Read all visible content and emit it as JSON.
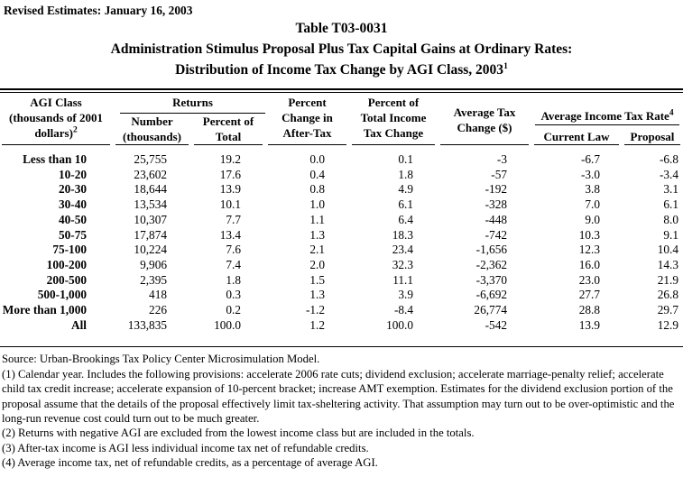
{
  "colors": {
    "text": "#000000",
    "background": "#ffffff"
  },
  "meta": {
    "revised_label": "Revised Estimates: January 16, 2003"
  },
  "title": {
    "line1": "Table T03-0031",
    "line2": "Administration Stimulus Proposal Plus Tax Capital Gains at Ordinary Rates:",
    "line3": "Distribution of Income Tax Change by AGI Class, 2003",
    "line3_sup": "1"
  },
  "table": {
    "header": {
      "agi_class": {
        "lines": [
          "AGI Class",
          "(thousands of 2001",
          "dollars)"
        ],
        "sup": "2"
      },
      "returns": {
        "label": "Returns",
        "number_lines": [
          "Number",
          "(thousands)"
        ],
        "percent_lines": [
          "Percent of",
          "Total"
        ]
      },
      "percent_change_after_tax": {
        "lines": [
          "Percent",
          "Change in",
          "After-Tax"
        ]
      },
      "percent_of_total_income_tax_change": {
        "lines": [
          "Percent of",
          "Total Income",
          "Tax Change"
        ]
      },
      "average_tax_change": {
        "lines": [
          "Average Tax",
          "Change ($)"
        ]
      },
      "average_income_tax_rate": {
        "label": "Average Income Tax Rate",
        "sup": "4",
        "current_law": "Current Law",
        "proposal": "Proposal"
      }
    },
    "column_order": [
      "agi_class",
      "returns_number",
      "returns_percent_of_total",
      "percent_change_after_tax",
      "percent_of_total_income_tax_change",
      "average_tax_change",
      "rate_current_law",
      "rate_proposal"
    ],
    "rows": [
      {
        "agi_class": "Less than 10",
        "returns_number": "25,755",
        "returns_percent_of_total": "19.2",
        "percent_change_after_tax": "0.0",
        "percent_of_total_income_tax_change": "0.1",
        "average_tax_change": "-3",
        "rate_current_law": "-6.7",
        "rate_proposal": "-6.8"
      },
      {
        "agi_class": "10-20",
        "returns_number": "23,602",
        "returns_percent_of_total": "17.6",
        "percent_change_after_tax": "0.4",
        "percent_of_total_income_tax_change": "1.8",
        "average_tax_change": "-57",
        "rate_current_law": "-3.0",
        "rate_proposal": "-3.4"
      },
      {
        "agi_class": "20-30",
        "returns_number": "18,644",
        "returns_percent_of_total": "13.9",
        "percent_change_after_tax": "0.8",
        "percent_of_total_income_tax_change": "4.9",
        "average_tax_change": "-192",
        "rate_current_law": "3.8",
        "rate_proposal": "3.1"
      },
      {
        "agi_class": "30-40",
        "returns_number": "13,534",
        "returns_percent_of_total": "10.1",
        "percent_change_after_tax": "1.0",
        "percent_of_total_income_tax_change": "6.1",
        "average_tax_change": "-328",
        "rate_current_law": "7.0",
        "rate_proposal": "6.1"
      },
      {
        "agi_class": "40-50",
        "returns_number": "10,307",
        "returns_percent_of_total": "7.7",
        "percent_change_after_tax": "1.1",
        "percent_of_total_income_tax_change": "6.4",
        "average_tax_change": "-448",
        "rate_current_law": "9.0",
        "rate_proposal": "8.0"
      },
      {
        "agi_class": "50-75",
        "returns_number": "17,874",
        "returns_percent_of_total": "13.4",
        "percent_change_after_tax": "1.3",
        "percent_of_total_income_tax_change": "18.3",
        "average_tax_change": "-742",
        "rate_current_law": "10.3",
        "rate_proposal": "9.1"
      },
      {
        "agi_class": "75-100",
        "returns_number": "10,224",
        "returns_percent_of_total": "7.6",
        "percent_change_after_tax": "2.1",
        "percent_of_total_income_tax_change": "23.4",
        "average_tax_change": "-1,656",
        "rate_current_law": "12.3",
        "rate_proposal": "10.4"
      },
      {
        "agi_class": "100-200",
        "returns_number": "9,906",
        "returns_percent_of_total": "7.4",
        "percent_change_after_tax": "2.0",
        "percent_of_total_income_tax_change": "32.3",
        "average_tax_change": "-2,362",
        "rate_current_law": "16.0",
        "rate_proposal": "14.3"
      },
      {
        "agi_class": "200-500",
        "returns_number": "2,395",
        "returns_percent_of_total": "1.8",
        "percent_change_after_tax": "1.5",
        "percent_of_total_income_tax_change": "11.1",
        "average_tax_change": "-3,370",
        "rate_current_law": "23.0",
        "rate_proposal": "21.9"
      },
      {
        "agi_class": "500-1,000",
        "returns_number": "418",
        "returns_percent_of_total": "0.3",
        "percent_change_after_tax": "1.3",
        "percent_of_total_income_tax_change": "3.9",
        "average_tax_change": "-6,692",
        "rate_current_law": "27.7",
        "rate_proposal": "26.8"
      },
      {
        "agi_class": "More than 1,000",
        "returns_number": "226",
        "returns_percent_of_total": "0.2",
        "percent_change_after_tax": "-1.2",
        "percent_of_total_income_tax_change": "-8.4",
        "average_tax_change": "26,774",
        "rate_current_law": "28.8",
        "rate_proposal": "29.7"
      },
      {
        "agi_class": "All",
        "returns_number": "133,835",
        "returns_percent_of_total": "100.0",
        "percent_change_after_tax": "1.2",
        "percent_of_total_income_tax_change": "100.0",
        "average_tax_change": "-542",
        "rate_current_law": "13.9",
        "rate_proposal": "12.9"
      }
    ]
  },
  "footnotes": [
    "Source: Urban-Brookings Tax Policy Center Microsimulation Model.",
    "(1) Calendar year. Includes the following provisions: accelerate 2006 rate cuts; dividend exclusion; accelerate marriage-penalty relief; accelerate child tax credit increase; accelerate expansion of 10-percent bracket; increase AMT exemption. Estimates for the dividend exclusion portion of the proposal assume that the details of the proposal effectively limit tax-sheltering activity.  That assumption may turn out to be over-optimistic and the long-run revenue cost could turn out to be much greater.",
    "(2) Returns with negative AGI are excluded from the lowest income class but are included in the totals.",
    "(3) After-tax income is AGI less individual income tax net of refundable credits.",
    "(4) Average income tax, net of refundable credits, as a percentage of average AGI."
  ]
}
